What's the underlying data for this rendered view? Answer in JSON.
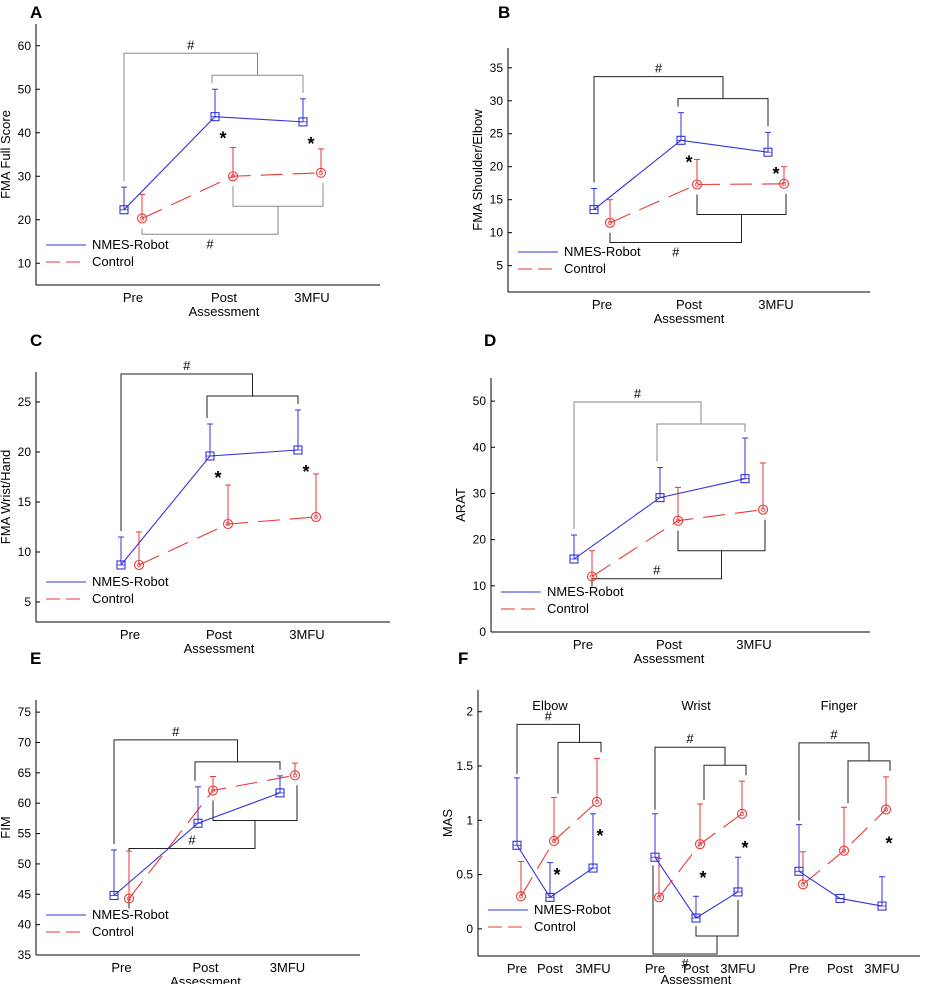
{
  "colors": {
    "nmes": "#3333dd",
    "control": "#e83a3a",
    "bracket_dark": "#222222",
    "bracket_light": "#888888"
  },
  "legend": {
    "nmes": "NMES-Robot",
    "control": "Control"
  },
  "chart_data": [
    {
      "id": "A",
      "type": "line",
      "panel_label": "A",
      "ylabel": "FMA Full Score",
      "xlabel": "Assessment",
      "categories": [
        "Pre",
        "Post",
        "3MFU"
      ],
      "ylim": [
        5,
        65
      ],
      "yticks": [
        10,
        20,
        30,
        40,
        50,
        60
      ],
      "series": [
        {
          "name": "NMES-Robot",
          "values": [
            22.3,
            43.7,
            42.5
          ],
          "errors": [
            5.2,
            6.3,
            5.3
          ]
        },
        {
          "name": "Control",
          "values": [
            20.3,
            30.0,
            30.8
          ],
          "errors": [
            5.5,
            6.6,
            5.5
          ]
        }
      ],
      "annotations": {
        "stars": [
          "Post",
          "3MFU"
        ],
        "pairs_top": [
          "#",
          ""
        ],
        "pairs_bottom": [
          "#",
          ""
        ]
      }
    },
    {
      "id": "B",
      "type": "line",
      "panel_label": "B",
      "ylabel": "FMA Shoulder/Elbow",
      "xlabel": "Assessment",
      "categories": [
        "Pre",
        "Post",
        "3MFU"
      ],
      "ylim": [
        1,
        38
      ],
      "yticks": [
        5,
        10,
        15,
        20,
        25,
        30,
        35
      ],
      "series": [
        {
          "name": "NMES-Robot",
          "values": [
            13.5,
            24.0,
            22.2
          ],
          "errors": [
            3.2,
            4.2,
            3.0
          ]
        },
        {
          "name": "Control",
          "values": [
            11.5,
            17.3,
            17.4
          ],
          "errors": [
            3.5,
            3.8,
            2.6
          ]
        }
      ],
      "annotations": {
        "stars": [
          "Post",
          "3MFU"
        ],
        "pairs_top": [
          "#",
          ""
        ],
        "pairs_bottom": [
          "#",
          ""
        ]
      }
    },
    {
      "id": "C",
      "type": "line",
      "panel_label": "C",
      "ylabel": "FMA Wrist/Hand",
      "xlabel": "Assessment",
      "categories": [
        "Pre",
        "Post",
        "3MFU"
      ],
      "ylim": [
        3,
        28
      ],
      "yticks": [
        5,
        10,
        15,
        20,
        25
      ],
      "series": [
        {
          "name": "NMES-Robot",
          "values": [
            8.7,
            19.6,
            20.2
          ],
          "errors": [
            2.8,
            3.2,
            4.0
          ]
        },
        {
          "name": "Control",
          "values": [
            8.7,
            12.8,
            13.5
          ],
          "errors": [
            3.3,
            3.9,
            4.3
          ]
        }
      ],
      "annotations": {
        "stars": [
          "Post",
          "3MFU"
        ],
        "pairs_top": [
          "#",
          ""
        ],
        "pairs_bottom": []
      }
    },
    {
      "id": "D",
      "type": "line",
      "panel_label": "D",
      "ylabel": "ARAT",
      "xlabel": "Assessment",
      "categories": [
        "Pre",
        "Post",
        "3MFU"
      ],
      "ylim": [
        0,
        55
      ],
      "yticks": [
        0,
        10,
        20,
        30,
        40,
        50
      ],
      "series": [
        {
          "name": "NMES-Robot",
          "values": [
            15.8,
            29.1,
            33.2
          ],
          "errors": [
            5.2,
            6.5,
            8.8
          ]
        },
        {
          "name": "Control",
          "values": [
            12.0,
            24.1,
            26.5
          ],
          "errors": [
            5.6,
            7.2,
            10.1
          ]
        }
      ],
      "annotations": {
        "stars": [],
        "pairs_top": [
          "#",
          ""
        ],
        "pairs_bottom": [
          "#",
          ""
        ]
      }
    },
    {
      "id": "E",
      "type": "line",
      "panel_label": "E",
      "ylabel": "FIM",
      "xlabel": "Assessment",
      "categories": [
        "Pre",
        "Post",
        "3MFU"
      ],
      "ylim": [
        35,
        77
      ],
      "yticks": [
        35,
        40,
        45,
        50,
        55,
        60,
        65,
        70,
        75
      ],
      "series": [
        {
          "name": "NMES-Robot",
          "values": [
            44.8,
            56.7,
            61.7
          ],
          "errors": [
            7.5,
            6.0,
            2.8
          ]
        },
        {
          "name": "Control",
          "values": [
            44.3,
            62.1,
            64.6
          ],
          "errors": [
            7.8,
            2.3,
            2.0
          ]
        }
      ],
      "annotations": {
        "stars": [],
        "pairs_top": [
          "#",
          ""
        ],
        "pairs_bottom": [
          "#",
          ""
        ]
      }
    },
    {
      "id": "F",
      "type": "line",
      "panel_label": "F",
      "ylabel": "MAS",
      "xlabel": "Assessment",
      "ylim": [
        -0.25,
        2.2
      ],
      "yticks": [
        0,
        0.5,
        1,
        1.5,
        2
      ],
      "groups": [
        {
          "title": "Elbow",
          "categories": [
            "Pre",
            "Post",
            "3MFU"
          ],
          "series": [
            {
              "name": "NMES-Robot",
              "values": [
                0.77,
                0.29,
                0.56
              ],
              "errors": [
                0.62,
                0.32,
                0.5
              ]
            },
            {
              "name": "Control",
              "values": [
                0.3,
                0.81,
                1.17
              ],
              "errors": [
                0.32,
                0.4,
                0.4
              ]
            }
          ],
          "annotations": {
            "stars": [
              "Post",
              "3MFU"
            ],
            "pairs_top": [
              "#",
              ""
            ],
            "pairs_bottom": []
          }
        },
        {
          "title": "Wrist",
          "categories": [
            "Pre",
            "Post",
            "3MFU"
          ],
          "series": [
            {
              "name": "NMES-Robot",
              "values": [
                0.66,
                0.1,
                0.34
              ],
              "errors": [
                0.4,
                0.2,
                0.32
              ]
            },
            {
              "name": "Control",
              "values": [
                0.29,
                0.78,
                1.06
              ],
              "errors": [
                0.36,
                0.37,
                0.3
              ]
            }
          ],
          "annotations": {
            "stars": [
              "Post",
              "3MFU"
            ],
            "pairs_top": [
              "#",
              ""
            ],
            "pairs_bottom": [
              "#",
              ""
            ]
          }
        },
        {
          "title": "Finger",
          "categories": [
            "Pre",
            "Post",
            "3MFU"
          ],
          "series": [
            {
              "name": "NMES-Robot",
              "values": [
                0.53,
                0.28,
                0.21
              ],
              "errors": [
                0.43,
                0.0,
                0.27
              ]
            },
            {
              "name": "Control",
              "values": [
                0.41,
                0.72,
                1.1
              ],
              "errors": [
                0.3,
                0.4,
                0.3
              ]
            }
          ],
          "annotations": {
            "stars": [
              "3MFU"
            ],
            "pairs_top": [
              "#",
              ""
            ],
            "pairs_bottom": []
          }
        }
      ]
    }
  ]
}
